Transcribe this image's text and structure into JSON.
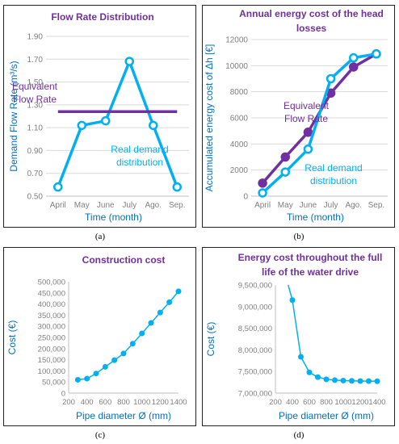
{
  "colors": {
    "purple": "#7030a0",
    "blue": "#00b0f0",
    "axis_text": "#7f7f7f",
    "label_blue": "#0070c0",
    "grid": "#d9d9d9"
  },
  "captions": [
    "(a)",
    "(b)",
    "(c)",
    "(d)"
  ],
  "chart_data": [
    {
      "type": "line",
      "title": "Flow Rate Distribution",
      "xlabel": "Time (month)",
      "ylabel": "Demand Flow Rate (m³/s)",
      "categories": [
        "April",
        "May",
        "June",
        "July",
        "Ago.",
        "Sep."
      ],
      "yticks": [
        "0.50",
        "0.70",
        "0.90",
        "1.10",
        "1.30",
        "1.50",
        "1.70",
        "1.90"
      ],
      "ylim": [
        0.5,
        1.9
      ],
      "grid": true,
      "series": [
        {
          "name": "Real demand distribution",
          "values": [
            0.58,
            1.12,
            1.16,
            1.68,
            1.12,
            0.58
          ],
          "color": "#00b0f0",
          "markers": true
        },
        {
          "name": "Equivalent Flow Rate",
          "values": [
            1.24,
            1.24,
            1.24,
            1.24,
            1.24,
            1.24
          ],
          "color": "#7030a0",
          "markers": false
        }
      ],
      "annotations": [
        {
          "lines": [
            "Equivalent",
            "Flow Rate"
          ],
          "color": "#7030a0"
        },
        {
          "lines": [
            "Real demand",
            "distribution"
          ],
          "color": "#00b0f0"
        }
      ]
    },
    {
      "type": "line",
      "title": "Annual energy cost of the head losses",
      "title_lines": [
        "Annual energy cost of the head",
        "losses"
      ],
      "xlabel": "Time (month)",
      "ylabel": "Accumulated energy cost of Δh [€]",
      "categories": [
        "April",
        "May",
        "June",
        "July",
        "Ago.",
        "Sep."
      ],
      "yticks": [
        "0",
        "2000",
        "4000",
        "6000",
        "8000",
        "10000",
        "12000"
      ],
      "ylim": [
        0,
        12000
      ],
      "grid": true,
      "series": [
        {
          "name": "Equivalent Flow Rate",
          "values": [
            1000,
            3000,
            4900,
            7900,
            9900,
            10900
          ],
          "color": "#7030a0",
          "markers": true
        },
        {
          "name": "Real demand distribution",
          "values": [
            250,
            1850,
            3600,
            9000,
            10600,
            10900
          ],
          "color": "#00b0f0",
          "markers": true
        }
      ],
      "annotations": [
        {
          "lines": [
            "Equivalent",
            "Flow Rate"
          ],
          "color": "#7030a0"
        },
        {
          "lines": [
            "Real demand",
            "distribution"
          ],
          "color": "#00b0f0"
        }
      ]
    },
    {
      "type": "line",
      "title": "Construction cost",
      "xlabel": "Pipe diameter Ø (mm)",
      "ylabel": "Cost (€)",
      "xticks": [
        "200",
        "400",
        "600",
        "800",
        "1000",
        "1200",
        "1400"
      ],
      "xlim": [
        200,
        1400
      ],
      "yticks": [
        "0",
        "50,000",
        "100,000",
        "150,000",
        "200,000",
        "250,000",
        "300,000",
        "350,000",
        "400,000",
        "450,000",
        "500,000"
      ],
      "ylim": [
        0,
        500000
      ],
      "grid": false,
      "series": [
        {
          "x": [
            300,
            400,
            500,
            600,
            700,
            800,
            900,
            1000,
            1100,
            1200,
            1300,
            1400
          ],
          "values": [
            60000,
            65000,
            88000,
            118000,
            148000,
            178000,
            222000,
            268000,
            315000,
            362000,
            408000,
            457000
          ],
          "color": "#00b0f0",
          "markers": true
        }
      ]
    },
    {
      "type": "line",
      "title": "Energy cost throughout the full life of the water drive",
      "title_lines": [
        "Energy cost throughout the full",
        "life of the water drive"
      ],
      "xlabel": "Pipe diameter Ø (mm)",
      "ylabel": "Cost (€)",
      "xticks": [
        "200",
        "400",
        "600",
        "800",
        "1000",
        "1200",
        "1400"
      ],
      "xlim": [
        200,
        1400
      ],
      "yticks": [
        "7,000,000",
        "7,500,000",
        "8,000,000",
        "8,500,000",
        "9,000,000",
        "9,500,000"
      ],
      "ylim": [
        7000000,
        9500000
      ],
      "grid": false,
      "series": [
        {
          "x": [
            350,
            400,
            500,
            600,
            700,
            800,
            900,
            1000,
            1100,
            1200,
            1300,
            1400
          ],
          "values": [
            9500000,
            9150000,
            7840000,
            7480000,
            7370000,
            7320000,
            7300000,
            7290000,
            7285000,
            7280000,
            7278000,
            7275000
          ],
          "color": "#00b0f0",
          "markers": true
        }
      ]
    }
  ]
}
